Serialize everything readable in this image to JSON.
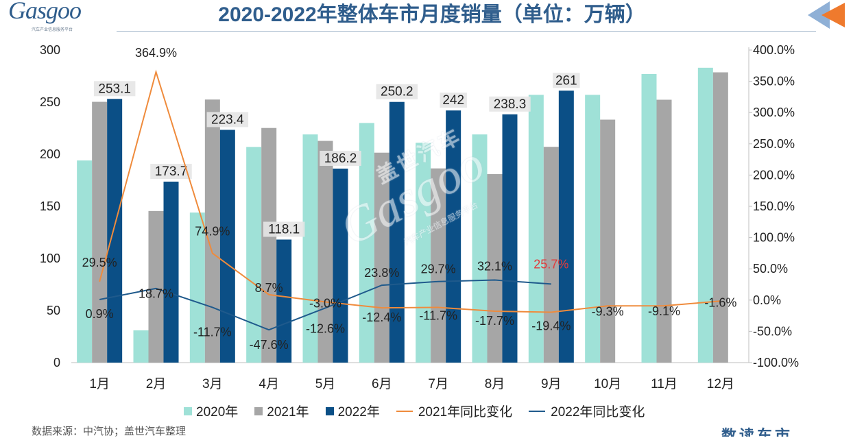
{
  "header": {
    "title": "2020-2022年整体车市月度销量（单位：万辆）",
    "logo_text": "Gasgoo",
    "logo_subtitle": "汽车产业信息服务平台",
    "back_icon": "back-arrow-icon"
  },
  "watermark": {
    "cn": "盖世汽车",
    "en": "Gasgoo",
    "sub": "汽车产业信息服务平台"
  },
  "footer": {
    "source": "数据来源：中汽协；盖世汽车整理",
    "brand": "数读车市"
  },
  "colors": {
    "s2020": "#9fe1d7",
    "s2021": "#a6a6a6",
    "s2022": "#0b4f86",
    "line2021": "#ef8b3c",
    "line2022": "#1f5a8c",
    "highlight": "#e23b3b",
    "title": "#2f5d8c"
  },
  "chart_data": {
    "type": "bar",
    "title": "2020-2022年整体车市月度销量（单位：万辆）",
    "categories": [
      "1月",
      "2月",
      "3月",
      "4月",
      "5月",
      "6月",
      "7月",
      "8月",
      "9月",
      "10月",
      "11月",
      "12月"
    ],
    "y_left": {
      "min": 0,
      "max": 300,
      "ticks": [
        "0",
        "50",
        "100",
        "150",
        "200",
        "250",
        "300"
      ]
    },
    "y_right": {
      "min": -100,
      "max": 400,
      "ticks": [
        "-100.0%",
        "-50.0%",
        "0.0%",
        "50.0%",
        "100.0%",
        "150.0%",
        "200.0%",
        "250.0%",
        "300.0%",
        "350.0%",
        "400.0%"
      ]
    },
    "series": [
      {
        "name": "2020年",
        "values": [
          194,
          31,
          144,
          207,
          219,
          230,
          211,
          219,
          257,
          257,
          277,
          283
        ]
      },
      {
        "name": "2021年",
        "values": [
          250.3,
          145.5,
          252.5,
          225.2,
          212.8,
          201.5,
          186.4,
          180.9,
          207.1,
          233.2,
          252.3,
          278.6
        ]
      },
      {
        "name": "2022年",
        "values": [
          253.1,
          173.7,
          223.4,
          118.1,
          186.2,
          250.2,
          242,
          238.3,
          261,
          null,
          null,
          null
        ],
        "labels": [
          "253.1",
          "173.7",
          "223.4",
          "118.1",
          "186.2",
          "250.2",
          "242",
          "238.3",
          "261",
          "",
          "",
          ""
        ]
      }
    ],
    "lines": [
      {
        "name": "2021年同比变化",
        "values": [
          29.5,
          364.9,
          74.9,
          8.7,
          -3.0,
          -12.4,
          -11.7,
          -17.7,
          -19.4,
          -9.3,
          -9.1,
          -1.6
        ],
        "labels": [
          "29.5%",
          "364.9%",
          "74.9%",
          "8.7%",
          "-3.0%",
          "-12.4%",
          "-11.7%",
          "-17.7%",
          "-19.4%",
          "-9.3%",
          "-9.1%",
          "-1.6%"
        ]
      },
      {
        "name": "2022年同比变化",
        "values": [
          0.9,
          18.7,
          -11.7,
          -47.6,
          -12.6,
          23.8,
          29.7,
          32.1,
          25.7,
          null,
          null,
          null
        ],
        "labels": [
          "0.9%",
          "18.7%",
          "-11.7%",
          "-47.6%",
          "-12.6%",
          "23.8%",
          "29.7%",
          "32.1%",
          "25.7%",
          "",
          "",
          ""
        ]
      }
    ],
    "legend": [
      "2020年",
      "2021年",
      "2022年",
      "2021年同比变化",
      "2022年同比变化"
    ]
  }
}
